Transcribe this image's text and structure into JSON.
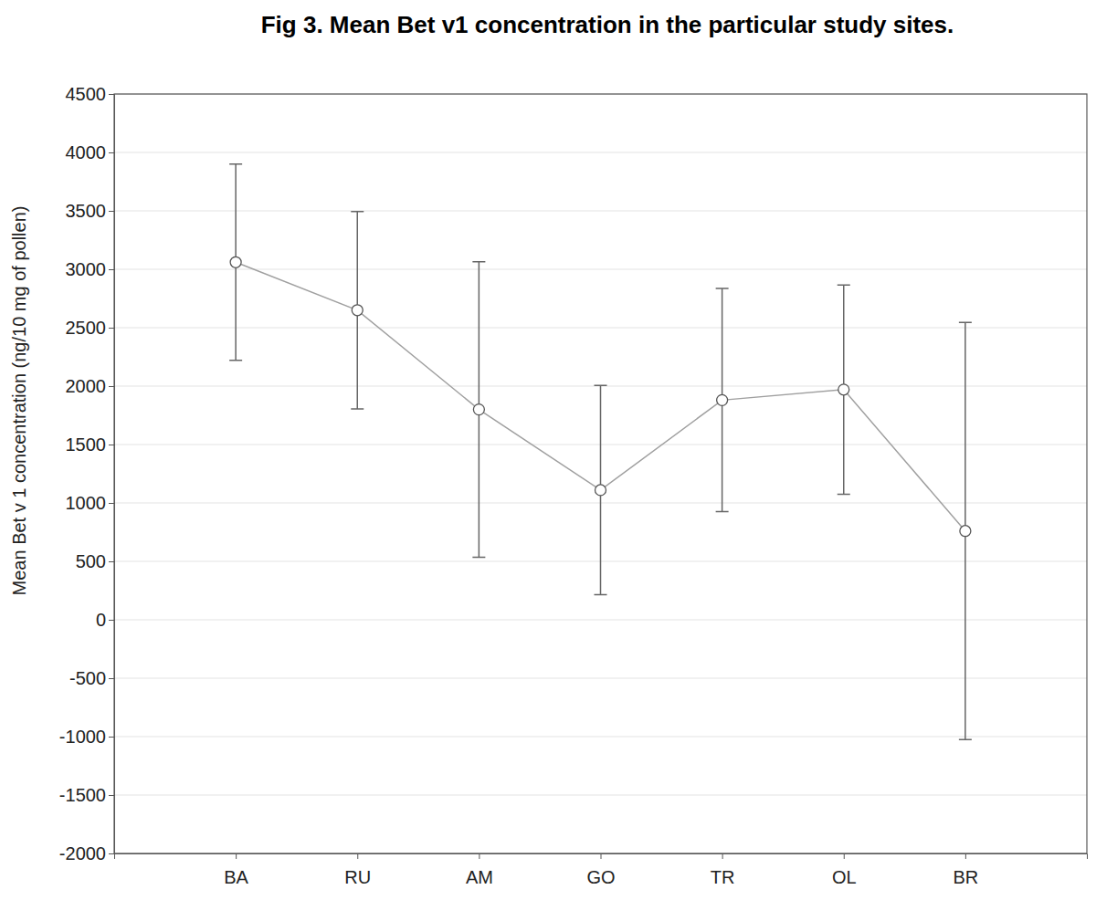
{
  "chart_data": {
    "type": "line",
    "title": "Fig 3. Mean Bet v1 concentration in the particular study sites.",
    "y_label": "Mean Bet v 1 concentration (ng/10 mg of pollen)",
    "categories": [
      "BA",
      "RU",
      "AM",
      "GO",
      "TR",
      "OL",
      "BR"
    ],
    "values": [
      3060,
      2650,
      1800,
      1110,
      1880,
      1970,
      760
    ],
    "errors": [
      840,
      845,
      1265,
      895,
      955,
      895,
      1785
    ],
    "color": "#a0a0a0",
    "marker": "circle",
    "ylim": [
      -2000,
      4500
    ],
    "yticks": [
      -2000,
      -1500,
      -1000,
      -500,
      0,
      500,
      1000,
      1500,
      2000,
      2500,
      3000,
      3500,
      4000,
      4500
    ],
    "grid": true
  }
}
